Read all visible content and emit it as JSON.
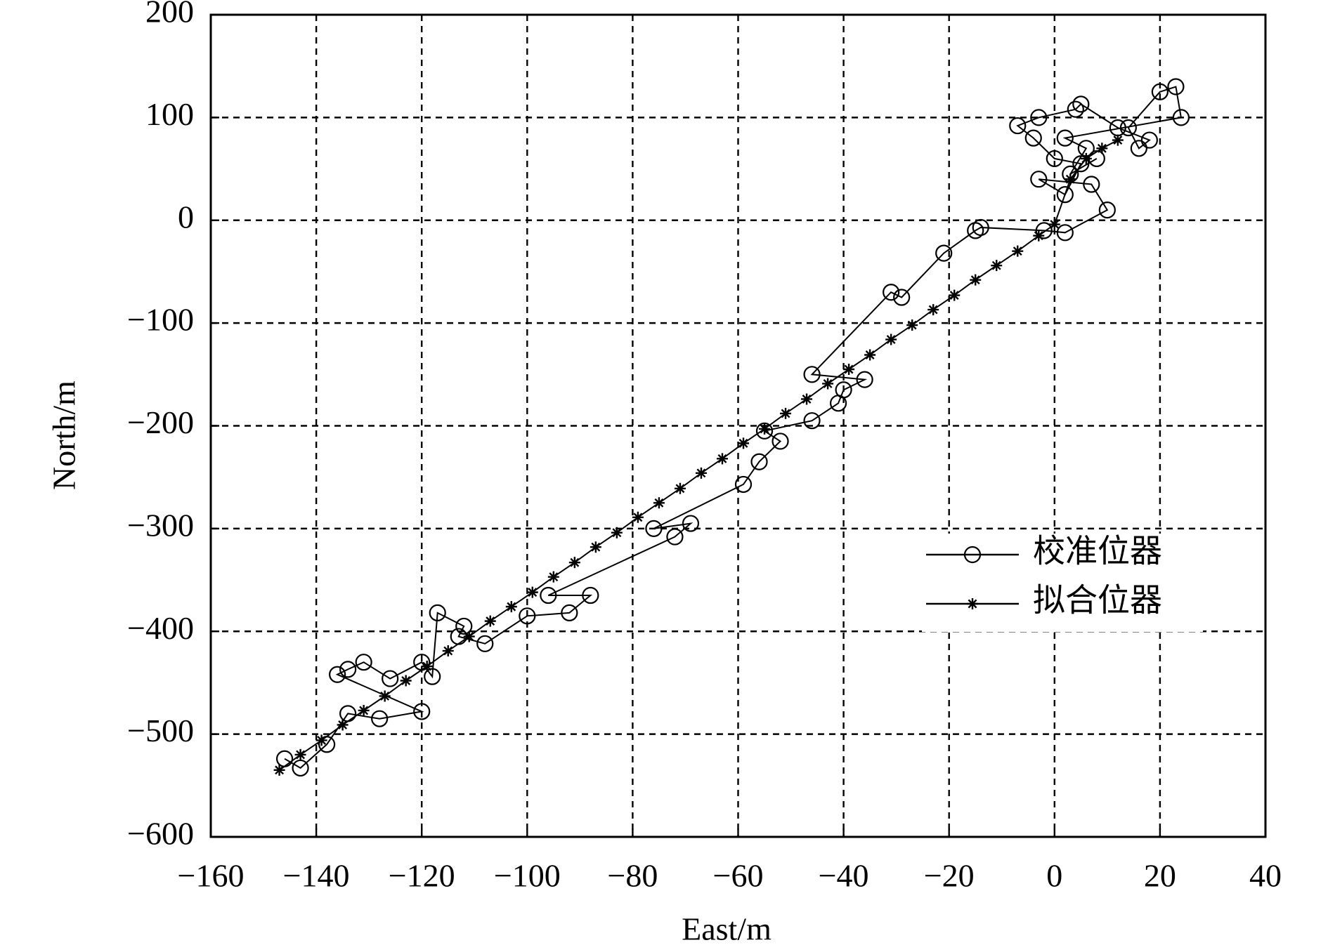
{
  "chart_data": {
    "type": "line",
    "xlabel": "East/m",
    "ylabel": "North/m",
    "xlim": [
      -160,
      40
    ],
    "ylim": [
      -600,
      200
    ],
    "xticks": [
      {
        "value": -160,
        "label": "−160"
      },
      {
        "value": -140,
        "label": "−140"
      },
      {
        "value": -120,
        "label": "−120"
      },
      {
        "value": -100,
        "label": "−100"
      },
      {
        "value": -80,
        "label": "−80"
      },
      {
        "value": -60,
        "label": "−60"
      },
      {
        "value": -40,
        "label": "−40"
      },
      {
        "value": -20,
        "label": "−20"
      },
      0,
      20,
      40
    ],
    "yticks": [
      {
        "value": -600,
        "label": "−600"
      },
      {
        "value": -500,
        "label": "−500"
      },
      {
        "value": -400,
        "label": "−400"
      },
      {
        "value": -300,
        "label": "−300"
      },
      {
        "value": -200,
        "label": "−200"
      },
      {
        "value": -100,
        "label": "−100"
      },
      0,
      100,
      200
    ],
    "grid": true,
    "legend": "right",
    "series": [
      {
        "name": "校准位器",
        "color": "#000000",
        "marker": "circle",
        "x": [
          -146,
          -143,
          -138,
          -134,
          -128,
          -120,
          -136,
          -134,
          -131,
          -126,
          -120,
          -118,
          -117,
          -112,
          -113,
          -108,
          -100,
          -92,
          -88,
          -96,
          -72,
          -69,
          -76,
          -59,
          -56,
          -52,
          -55,
          -46,
          -41,
          -40,
          -36,
          -46,
          -31,
          -29,
          -21,
          -15,
          -14,
          -2,
          2,
          10,
          7,
          -3,
          2,
          5,
          0,
          -4,
          -7,
          -3,
          4,
          5,
          12,
          18,
          16,
          14,
          20,
          23,
          24,
          2,
          6,
          3,
          8
        ],
        "values": [
          -524,
          -533,
          -510,
          -480,
          -485,
          -478,
          -442,
          -437,
          -430,
          -446,
          -430,
          -444,
          -382,
          -395,
          -405,
          -412,
          -385,
          -382,
          -365,
          -365,
          -308,
          -295,
          -300,
          -257,
          -235,
          -215,
          -205,
          -195,
          -178,
          -165,
          -155,
          -150,
          -70,
          -75,
          -32,
          -10,
          -7,
          -10,
          -12,
          10,
          35,
          40,
          25,
          55,
          60,
          80,
          92,
          100,
          108,
          113,
          90,
          78,
          70,
          90,
          125,
          130,
          100,
          80,
          70,
          45,
          60
        ]
      },
      {
        "name": "拟合位器",
        "color": "#000000",
        "marker": "star",
        "x": [
          -147,
          -143,
          -139,
          -135,
          -131,
          -127,
          -123,
          -119,
          -115,
          -111,
          -107,
          -103,
          -99,
          -95,
          -91,
          -87,
          -83,
          -79,
          -75,
          -71,
          -67,
          -63,
          -59,
          -55,
          -51,
          -47,
          -43,
          -39,
          -35,
          -31,
          -27,
          -23,
          -19,
          -15,
          -11,
          -7,
          -3,
          0,
          3,
          6,
          9,
          12
        ],
        "values": [
          -535,
          -520,
          -506,
          -491,
          -477,
          -463,
          -448,
          -434,
          -419,
          -405,
          -390,
          -376,
          -362,
          -347,
          -333,
          -318,
          -304,
          -289,
          -275,
          -261,
          -246,
          -232,
          -217,
          -203,
          -188,
          -174,
          -159,
          -145,
          -131,
          -116,
          -102,
          -87,
          -73,
          -58,
          -44,
          -30,
          -15,
          -4,
          40,
          60,
          70,
          78
        ]
      }
    ]
  }
}
